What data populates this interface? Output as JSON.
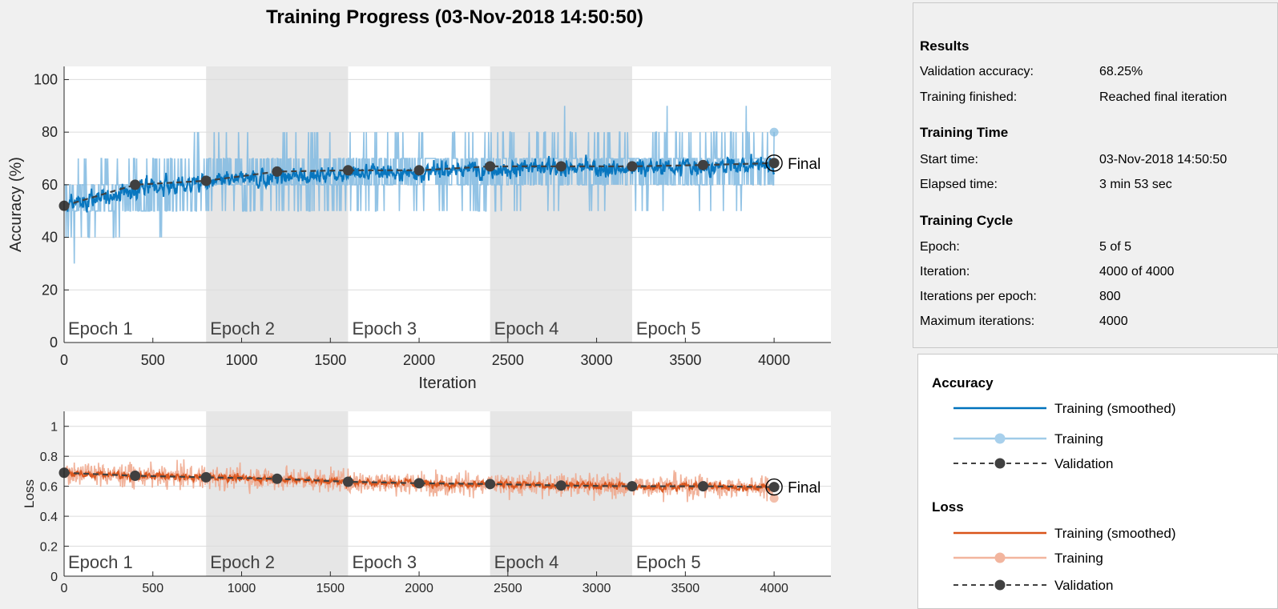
{
  "window": {
    "title": "Training Progress (03-Nov-2018 14:50:50)"
  },
  "results": {
    "results_heading": "Results",
    "validation_accuracy_label": "Validation accuracy:",
    "validation_accuracy_value": "68.25%",
    "training_finished_label": "Training finished:",
    "training_finished_value": "Reached final iteration",
    "time_heading": "Training Time",
    "start_time_label": "Start time:",
    "start_time_value": "03-Nov-2018 14:50:50",
    "elapsed_label": "Elapsed time:",
    "elapsed_value": "3 min 53 sec",
    "cycle_heading": "Training Cycle",
    "epoch_label": "Epoch:",
    "epoch_value": "5 of 5",
    "iteration_label": "Iteration:",
    "iteration_value": "4000 of 4000",
    "ipe_label": "Iterations per epoch:",
    "ipe_value": "800",
    "max_iter_label": "Maximum iterations:",
    "max_iter_value": "4000"
  },
  "legend": {
    "accuracy_heading": "Accuracy",
    "acc_smoothed": "Training (smoothed)",
    "acc_training": "Training",
    "acc_validation": "Validation",
    "loss_heading": "Loss",
    "loss_smoothed": "Training (smoothed)",
    "loss_training": "Training",
    "loss_validation": "Validation"
  },
  "colors": {
    "acc_smoothed": "#0072bd",
    "acc_training": "#7fb9e0",
    "loss_smoothed": "#d95319",
    "loss_training": "#eea488",
    "validation": "#404040",
    "epoch_shade": "#e6e6e6"
  },
  "chart_data": [
    {
      "type": "line",
      "ylabel": "Accuracy (%)",
      "xlabel": "Iteration",
      "xlim": [
        0,
        4320
      ],
      "ylim": [
        0,
        105
      ],
      "xticks": [
        0,
        500,
        1000,
        1500,
        2000,
        2500,
        3000,
        3500,
        4000
      ],
      "yticks": [
        0,
        20,
        40,
        60,
        80,
        100
      ],
      "epoch_labels": [
        "Epoch 1",
        "Epoch 2",
        "Epoch 3",
        "Epoch 4",
        "Epoch 5"
      ],
      "epoch_bounds": [
        0,
        800,
        1600,
        2400,
        3200,
        4000
      ],
      "shaded_epochs": [
        1,
        3
      ],
      "final_label": "Final",
      "smoothed_trend": {
        "x": [
          0,
          400,
          800,
          1200,
          1600,
          2000,
          2400,
          2800,
          3200,
          3600,
          4000
        ],
        "y": [
          52,
          58,
          61,
          63,
          64,
          65,
          66,
          66.5,
          66.5,
          67,
          68
        ]
      },
      "training_band": {
        "low": 30,
        "high": 90
      },
      "training_last": {
        "x": 4000,
        "y": 80
      },
      "validation": {
        "x": [
          0,
          400,
          800,
          1200,
          1600,
          2000,
          2400,
          2800,
          3200,
          3600,
          4000
        ],
        "y": [
          52,
          60,
          61.5,
          65,
          65.5,
          65.5,
          67,
          67,
          67,
          67.5,
          68.25
        ]
      }
    },
    {
      "type": "line",
      "ylabel": "Loss",
      "xlabel": "",
      "xlim": [
        0,
        4320
      ],
      "ylim": [
        0,
        1.1
      ],
      "xticks": [
        0,
        500,
        1000,
        1500,
        2000,
        2500,
        3000,
        3500,
        4000
      ],
      "yticks": [
        0,
        0.2,
        0.4,
        0.6,
        0.8,
        1
      ],
      "epoch_labels": [
        "Epoch 1",
        "Epoch 2",
        "Epoch 3",
        "Epoch 4",
        "Epoch 5"
      ],
      "epoch_bounds": [
        0,
        800,
        1600,
        2400,
        3200,
        4000
      ],
      "shaded_epochs": [
        1,
        3
      ],
      "final_label": "Final",
      "smoothed_trend": {
        "x": [
          0,
          400,
          800,
          1200,
          1600,
          2000,
          2400,
          2800,
          3200,
          3600,
          4000
        ],
        "y": [
          0.69,
          0.67,
          0.66,
          0.65,
          0.63,
          0.62,
          0.61,
          0.61,
          0.6,
          0.6,
          0.59
        ]
      },
      "training_band": {
        "low": 0.45,
        "high": 0.82
      },
      "training_last": {
        "x": 4000,
        "y": 0.52
      },
      "validation": {
        "x": [
          0,
          400,
          800,
          1200,
          1600,
          2000,
          2400,
          2800,
          3200,
          3600,
          4000
        ],
        "y": [
          0.69,
          0.67,
          0.66,
          0.65,
          0.63,
          0.62,
          0.615,
          0.605,
          0.6,
          0.6,
          0.595
        ]
      }
    }
  ]
}
